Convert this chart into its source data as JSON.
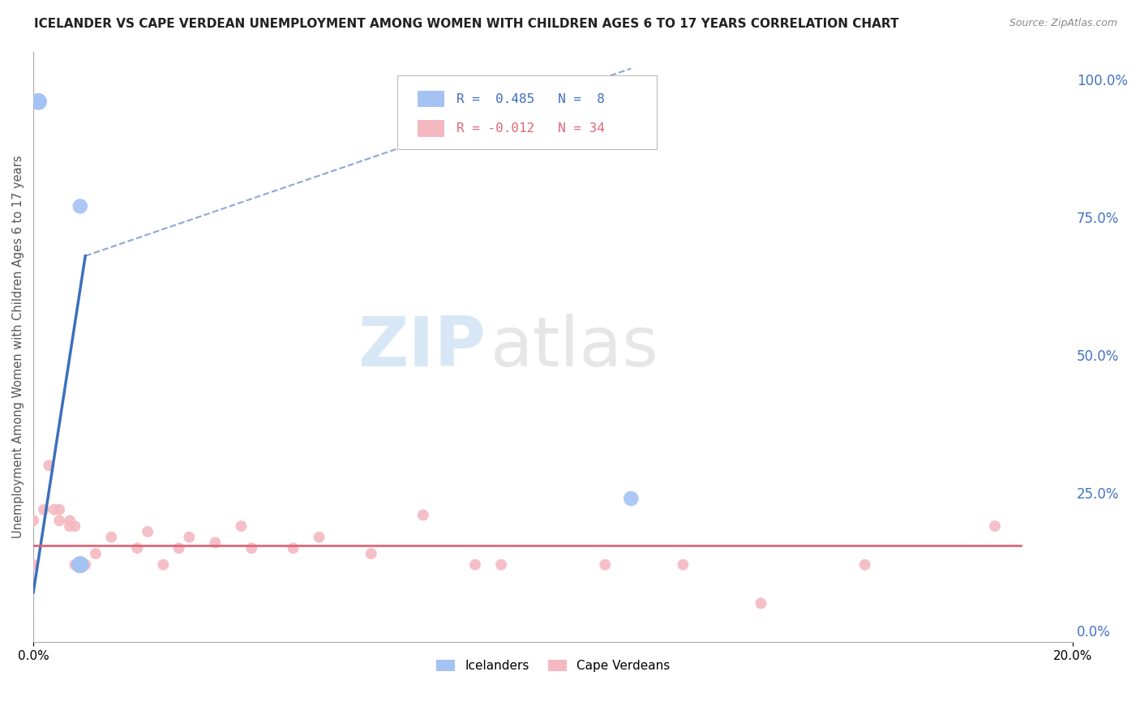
{
  "title": "ICELANDER VS CAPE VERDEAN UNEMPLOYMENT AMONG WOMEN WITH CHILDREN AGES 6 TO 17 YEARS CORRELATION CHART",
  "source": "Source: ZipAtlas.com",
  "ylabel": "Unemployment Among Women with Children Ages 6 to 17 years",
  "legend_icelander_label": "Icelanders",
  "legend_capeverdean_label": "Cape Verdeans",
  "legend_R_icelander": "R =  0.485",
  "legend_N_icelander": "N =  8",
  "legend_R_capeverdean": "R = -0.012",
  "legend_N_capeverdean": "N = 34",
  "watermark_zip": "ZIP",
  "watermark_atlas": "atlas",
  "icelander_color": "#a4c2f4",
  "capeverdean_color": "#f4b8c1",
  "icelander_line_color": "#3d6fbd",
  "capeverdean_line_color": "#e06678",
  "background_color": "#ffffff",
  "grid_color": "#cccccc",
  "right_yaxis_color": "#4472c4",
  "xlim": [
    0.0,
    0.2
  ],
  "ylim": [
    -0.02,
    1.05
  ],
  "right_yticks": [
    0.0,
    0.25,
    0.5,
    0.75,
    1.0
  ],
  "right_ytick_labels": [
    "0.0%",
    "25.0%",
    "50.0%",
    "75.0%",
    "100.0%"
  ],
  "icelander_x": [
    0.001,
    0.001,
    0.009,
    0.009,
    0.009,
    0.009,
    0.009,
    0.115
  ],
  "icelander_y": [
    0.96,
    0.96,
    0.77,
    0.12,
    0.12,
    0.12,
    0.12,
    0.24
  ],
  "icelander_sizes": [
    220,
    220,
    180,
    220,
    220,
    220,
    220,
    180
  ],
  "capeverdean_x": [
    0.0,
    0.0,
    0.002,
    0.003,
    0.004,
    0.005,
    0.005,
    0.007,
    0.007,
    0.008,
    0.008,
    0.009,
    0.01,
    0.012,
    0.015,
    0.02,
    0.022,
    0.025,
    0.028,
    0.03,
    0.035,
    0.04,
    0.042,
    0.05,
    0.055,
    0.065,
    0.075,
    0.085,
    0.09,
    0.11,
    0.125,
    0.14,
    0.16,
    0.185
  ],
  "capeverdean_y": [
    0.12,
    0.2,
    0.22,
    0.3,
    0.22,
    0.2,
    0.22,
    0.19,
    0.2,
    0.19,
    0.12,
    0.12,
    0.12,
    0.14,
    0.17,
    0.15,
    0.18,
    0.12,
    0.15,
    0.17,
    0.16,
    0.19,
    0.15,
    0.15,
    0.17,
    0.14,
    0.21,
    0.12,
    0.12,
    0.12,
    0.12,
    0.05,
    0.12,
    0.19
  ],
  "capeverdean_sizes": [
    100,
    100,
    100,
    100,
    100,
    100,
    100,
    100,
    100,
    100,
    100,
    100,
    100,
    100,
    100,
    100,
    100,
    100,
    100,
    100,
    100,
    100,
    100,
    100,
    100,
    100,
    100,
    100,
    100,
    100,
    100,
    100,
    100,
    100
  ],
  "trend_ice_x0": 0.0,
  "trend_ice_x1": 0.115,
  "trend_ice_y0": 0.07,
  "trend_ice_y1": 0.68,
  "trend_ice_dashed_x0": 0.01,
  "trend_ice_dashed_x1": 0.115,
  "trend_ice_dashed_y0": 0.68,
  "trend_ice_dashed_y1": 1.02,
  "trend_cv_x0": 0.0,
  "trend_cv_x1": 0.19,
  "trend_cv_y0": 0.155,
  "trend_cv_y1": 0.155
}
